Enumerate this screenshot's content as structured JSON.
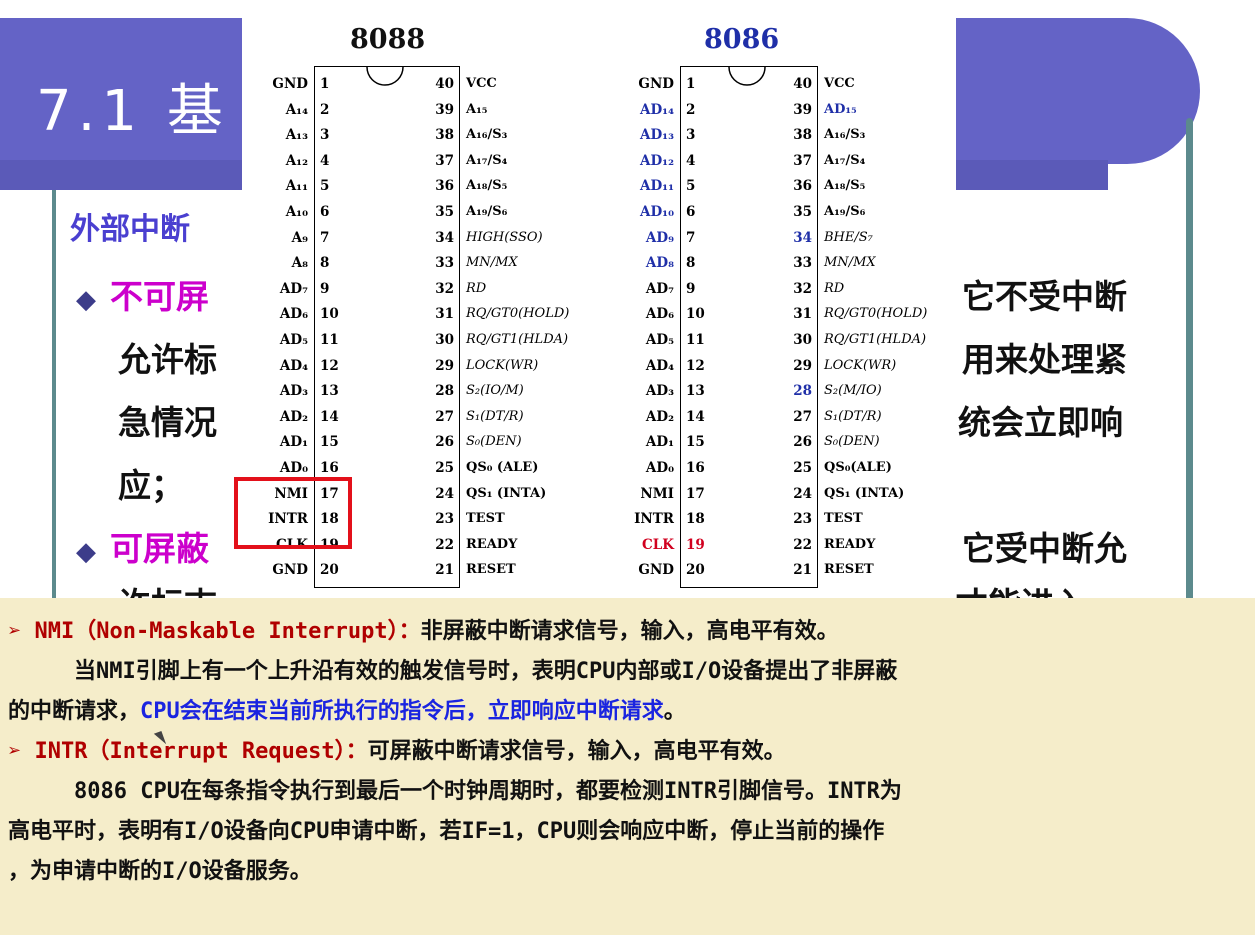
{
  "slide": {
    "title": "7.1 基",
    "section_heading": "外部中断",
    "bullet1_lead": "不可屏",
    "bullet1_right": "它不受中断",
    "bullet1_line2_left": "允许标",
    "bullet1_line2_right": "用来处理紧",
    "bullet1_line3_left": "急情况",
    "bullet1_line3_right": "统会立即响",
    "bullet1_line4_left": "应；",
    "bullet2_lead": "可屏蔽",
    "bullet2_right": "它受中断允",
    "bullet2_line2": "许标志",
    "bullet2_line2_right": "才能进入",
    "colors": {
      "title_bar": "#6463c6",
      "heading": "#4a3fd0",
      "lead": "#cc00cc"
    }
  },
  "pinout": {
    "chip_8088": {
      "title": "8088",
      "left": [
        {
          "name": "GND",
          "num": "1"
        },
        {
          "name": "A₁₄",
          "num": "2"
        },
        {
          "name": "A₁₃",
          "num": "3"
        },
        {
          "name": "A₁₂",
          "num": "4"
        },
        {
          "name": "A₁₁",
          "num": "5"
        },
        {
          "name": "A₁₀",
          "num": "6"
        },
        {
          "name": "A₉",
          "num": "7"
        },
        {
          "name": "A₈",
          "num": "8"
        },
        {
          "name": "AD₇",
          "num": "9"
        },
        {
          "name": "AD₆",
          "num": "10"
        },
        {
          "name": "AD₅",
          "num": "11"
        },
        {
          "name": "AD₄",
          "num": "12"
        },
        {
          "name": "AD₃",
          "num": "13"
        },
        {
          "name": "AD₂",
          "num": "14"
        },
        {
          "name": "AD₁",
          "num": "15"
        },
        {
          "name": "AD₀",
          "num": "16"
        },
        {
          "name": "NMI",
          "num": "17"
        },
        {
          "name": "INTR",
          "num": "18"
        },
        {
          "name": "CLK",
          "num": "19"
        },
        {
          "name": "GND",
          "num": "20"
        }
      ],
      "right": [
        {
          "num": "40",
          "name": "VCC"
        },
        {
          "num": "39",
          "name": "A₁₅"
        },
        {
          "num": "38",
          "name": "A₁₆/S₃"
        },
        {
          "num": "37",
          "name": "A₁₇/S₄"
        },
        {
          "num": "36",
          "name": "A₁₈/S₅"
        },
        {
          "num": "35",
          "name": "A₁₉/S₆"
        },
        {
          "num": "34",
          "name": "HIGH(SSO)"
        },
        {
          "num": "33",
          "name": "MN/MX"
        },
        {
          "num": "32",
          "name": "RD"
        },
        {
          "num": "31",
          "name": "RQ/GT0(HOLD)"
        },
        {
          "num": "30",
          "name": "RQ/GT1(HLDA)"
        },
        {
          "num": "29",
          "name": "LOCK(WR)"
        },
        {
          "num": "28",
          "name": "S₂(IO/M)"
        },
        {
          "num": "27",
          "name": "S₁(DT/R)"
        },
        {
          "num": "26",
          "name": "S₀(DEN)"
        },
        {
          "num": "25",
          "name": "QS₀ (ALE)"
        },
        {
          "num": "24",
          "name": "QS₁ (INTA)"
        },
        {
          "num": "23",
          "name": "TEST"
        },
        {
          "num": "22",
          "name": "READY"
        },
        {
          "num": "21",
          "name": "RESET"
        }
      ]
    },
    "chip_8086": {
      "title": "8086",
      "left": [
        {
          "name": "GND",
          "num": "1"
        },
        {
          "name": "AD₁₄",
          "num": "2"
        },
        {
          "name": "AD₁₃",
          "num": "3"
        },
        {
          "name": "AD₁₂",
          "num": "4"
        },
        {
          "name": "AD₁₁",
          "num": "5"
        },
        {
          "name": "AD₁₀",
          "num": "6"
        },
        {
          "name": "AD₉",
          "num": "7"
        },
        {
          "name": "AD₈",
          "num": "8"
        },
        {
          "name": "AD₇",
          "num": "9"
        },
        {
          "name": "AD₆",
          "num": "10"
        },
        {
          "name": "AD₅",
          "num": "11"
        },
        {
          "name": "AD₄",
          "num": "12"
        },
        {
          "name": "AD₃",
          "num": "13"
        },
        {
          "name": "AD₂",
          "num": "14"
        },
        {
          "name": "AD₁",
          "num": "15"
        },
        {
          "name": "AD₀",
          "num": "16"
        },
        {
          "name": "NMI",
          "num": "17"
        },
        {
          "name": "INTR",
          "num": "18"
        },
        {
          "name": "CLK",
          "num": "19"
        },
        {
          "name": "GND",
          "num": "20"
        }
      ],
      "right": [
        {
          "num": "40",
          "name": "VCC"
        },
        {
          "num": "39",
          "name": "AD₁₅"
        },
        {
          "num": "38",
          "name": "A₁₆/S₃"
        },
        {
          "num": "37",
          "name": "A₁₇/S₄"
        },
        {
          "num": "36",
          "name": "A₁₈/S₅"
        },
        {
          "num": "35",
          "name": "A₁₉/S₆"
        },
        {
          "num": "34",
          "name": "BHE/S₇"
        },
        {
          "num": "33",
          "name": "MN/MX"
        },
        {
          "num": "32",
          "name": "RD"
        },
        {
          "num": "31",
          "name": "RQ/GT0(HOLD)"
        },
        {
          "num": "30",
          "name": "RQ/GT1(HLDA)"
        },
        {
          "num": "29",
          "name": "LOCK(WR)"
        },
        {
          "num": "28",
          "name": "S₂(M/IO)"
        },
        {
          "num": "27",
          "name": "S₁(DT/R)"
        },
        {
          "num": "26",
          "name": "S₀(DEN)"
        },
        {
          "num": "25",
          "name": "QS₀(ALE)"
        },
        {
          "num": "24",
          "name": "QS₁ (INTA)"
        },
        {
          "num": "23",
          "name": "TEST"
        },
        {
          "num": "22",
          "name": "READY"
        },
        {
          "num": "21",
          "name": "RESET"
        }
      ]
    }
  },
  "notes": {
    "nmi_heading_term": "➢ NMI（Non-Maskable Interrupt）：",
    "nmi_heading_desc": "非屏蔽中断请求信号，输入，高电平有效。",
    "nmi_body_1": "当NMI引脚上有一个上升沿有效的触发信号时，表明CPU内部或I/O设备提出了非屏蔽",
    "nmi_body_2a": "的中断请求，",
    "nmi_body_2b": "CPU会在结束当前所执行的指令后，立即响应中断请求",
    "nmi_body_2c": "。",
    "intr_heading_term": "➢ INTR（Interrupt Request）：",
    "intr_heading_desc": "可屏蔽中断请求信号，输入，高电平有效。",
    "intr_body_1": "8086 CPU在每条指令执行到最后一个时钟周期时，都要检测INTR引脚信号。INTR为",
    "intr_body_2": "高电平时，表明有I/O设备向CPU申请中断，若IF=1，CPU则会响应中断，停止当前的操作",
    "intr_body_3": "，为申请中断的I/O设备服务。"
  }
}
